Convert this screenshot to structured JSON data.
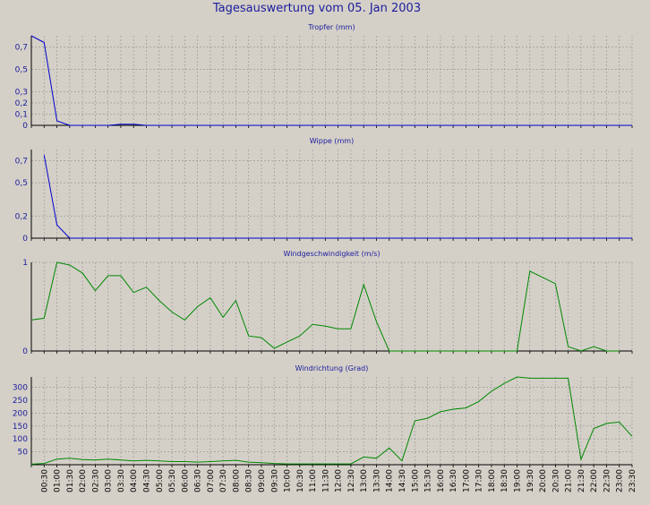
{
  "title": "Tagesauswertung vom 05. Jan 2003",
  "colors": {
    "background": "#d4d0c8",
    "text": "#1c1c9c",
    "grid": "#9a9a9a",
    "blue": "#0000cc",
    "green": "#008800"
  },
  "chart_data": [
    {
      "type": "line",
      "title": "Tropfer (mm)",
      "ylim": [
        0,
        0.8
      ],
      "yticks": [
        {
          "v": 0,
          "label": "0"
        },
        {
          "v": 0.1,
          "label": "0,1"
        },
        {
          "v": 0.2,
          "label": "0,2"
        },
        {
          "v": 0.3,
          "label": "0,3"
        },
        {
          "v": 0.5,
          "label": "0,5"
        },
        {
          "v": 0.7,
          "label": "0,7"
        }
      ],
      "color": "#0000cc",
      "x": [
        "00:00",
        "00:30",
        "01:00",
        "01:30",
        "02:00",
        "03:00",
        "03:30",
        "04:00",
        "04:30",
        "23:30"
      ],
      "values": [
        0.8,
        0.74,
        0.04,
        0,
        0,
        0,
        0.01,
        0.01,
        0,
        0
      ]
    },
    {
      "type": "line",
      "title": "Wippe (mm)",
      "ylim": [
        0,
        0.8
      ],
      "yticks": [
        {
          "v": 0,
          "label": "0"
        },
        {
          "v": 0.2,
          "label": "0,2"
        },
        {
          "v": 0.5,
          "label": "0,5"
        },
        {
          "v": 0.7,
          "label": "0,7"
        }
      ],
      "color": "#0000cc",
      "x": [
        "00:30",
        "01:00",
        "01:30",
        "23:30"
      ],
      "values": [
        0.75,
        0.12,
        0,
        0
      ]
    },
    {
      "type": "line",
      "title": "Windgeschwindigkeit (m/s)",
      "ylim": [
        0,
        1
      ],
      "yticks": [
        {
          "v": 0,
          "label": "0"
        },
        {
          "v": 1,
          "label": "1"
        }
      ],
      "color": "#008800",
      "x": [
        "00:00",
        "00:30",
        "01:00",
        "01:30",
        "02:00",
        "02:30",
        "03:00",
        "03:30",
        "04:00",
        "04:30",
        "05:00",
        "05:30",
        "06:00",
        "06:30",
        "07:00",
        "07:30",
        "08:00",
        "08:30",
        "09:00",
        "09:30",
        "10:00",
        "10:30",
        "11:00",
        "11:30",
        "12:00",
        "12:30",
        "13:00",
        "13:30",
        "14:00",
        "19:00",
        "19:30",
        "20:00",
        "20:30",
        "21:00",
        "21:30",
        "22:00",
        "22:30",
        "23:00"
      ],
      "values": [
        0.35,
        0.37,
        1.0,
        0.97,
        0.88,
        0.68,
        0.85,
        0.85,
        0.66,
        0.72,
        0.57,
        0.44,
        0.35,
        0.5,
        0.6,
        0.38,
        0.57,
        0.17,
        0.15,
        0.03,
        0.1,
        0.17,
        0.3,
        0.28,
        0.25,
        0.25,
        0.75,
        0.33,
        0,
        0,
        0.9,
        0.83,
        0.76,
        0.05,
        0,
        0.05,
        0,
        0
      ]
    },
    {
      "type": "line",
      "title": "Windrichtung (Grad)",
      "ylim": [
        0,
        340
      ],
      "yticks": [
        {
          "v": 50,
          "label": "50"
        },
        {
          "v": 100,
          "label": "100"
        },
        {
          "v": 150,
          "label": "150"
        },
        {
          "v": 200,
          "label": "200"
        },
        {
          "v": 250,
          "label": "250"
        },
        {
          "v": 300,
          "label": "300"
        }
      ],
      "color": "#008800",
      "x": [
        "00:00",
        "00:30",
        "01:00",
        "01:30",
        "02:00",
        "02:30",
        "03:00",
        "03:30",
        "04:00",
        "04:30",
        "05:00",
        "05:30",
        "06:00",
        "06:30",
        "07:00",
        "07:30",
        "08:00",
        "08:30",
        "09:00",
        "09:30",
        "10:00",
        "10:30",
        "11:00",
        "11:30",
        "12:00",
        "12:30",
        "13:00",
        "13:30",
        "14:00",
        "14:30",
        "15:00",
        "15:30",
        "16:00",
        "16:30",
        "17:00",
        "17:30",
        "18:00",
        "18:30",
        "19:00",
        "19:30",
        "20:00",
        "20:30",
        "21:00",
        "21:30",
        "22:00",
        "22:30",
        "23:00",
        "23:30"
      ],
      "values": [
        2,
        5,
        22,
        25,
        20,
        18,
        22,
        18,
        15,
        17,
        15,
        12,
        12,
        10,
        12,
        15,
        17,
        10,
        8,
        5,
        3,
        3,
        3,
        3,
        3,
        3,
        30,
        25,
        65,
        15,
        170,
        180,
        205,
        215,
        220,
        245,
        285,
        315,
        340,
        335,
        335,
        335,
        335,
        20,
        140,
        160,
        165,
        110
      ]
    }
  ],
  "x_axis": {
    "labels": [
      "00:30",
      "01:00",
      "01:30",
      "02:00",
      "02:30",
      "03:00",
      "03:30",
      "04:00",
      "04:30",
      "05:00",
      "05:30",
      "06:00",
      "06:30",
      "07:00",
      "07:30",
      "08:00",
      "08:30",
      "09:00",
      "09:30",
      "10:00",
      "10:30",
      "11:00",
      "11:30",
      "12:00",
      "12:30",
      "13:00",
      "13:30",
      "14:00",
      "14:30",
      "15:00",
      "15:30",
      "16:00",
      "16:30",
      "17:00",
      "17:30",
      "18:00",
      "18:30",
      "19:00",
      "19:30",
      "20:00",
      "20:30",
      "21:00",
      "21:30",
      "22:00",
      "22:30",
      "23:00",
      "23:30"
    ]
  }
}
